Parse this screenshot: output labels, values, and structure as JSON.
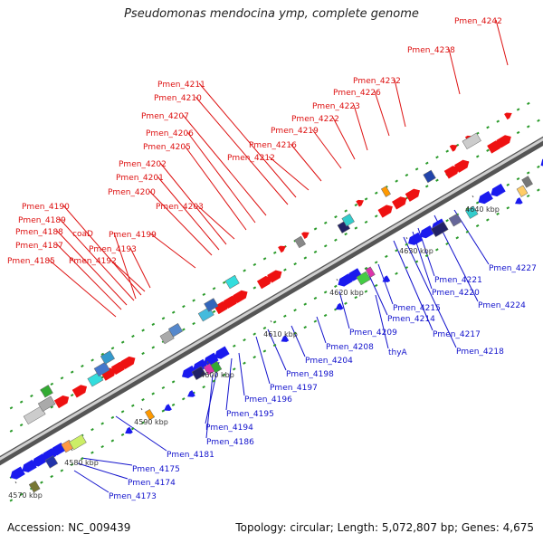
{
  "title": "Pseudomonas mendocina ymp, complete genome",
  "footer": {
    "accession": "Accession: NC_009439",
    "summary": "Topology: circular; Length: 5,072,807 bp; Genes: 4,675"
  },
  "colors": {
    "top_label": "#dd1111",
    "bottom_label": "#1111cc",
    "forward_gene": "#ee1111",
    "reverse_gene": "#1a1aee"
  },
  "axis_ticks": [
    {
      "label": "4570 kbp"
    },
    {
      "label": "4580 kbp"
    },
    {
      "label": "4590 kbp"
    },
    {
      "label": "4600 kbp"
    },
    {
      "label": "4610 kbp"
    },
    {
      "label": "4620 kbp"
    },
    {
      "label": "4630 kbp"
    },
    {
      "label": "4640 kbp"
    }
  ],
  "top_labels": [
    {
      "text": "Pmen_4185"
    },
    {
      "text": "Pmen_4187"
    },
    {
      "text": "Pmen_4188"
    },
    {
      "text": "Pmen_4189"
    },
    {
      "text": "Pmen_4190"
    },
    {
      "text": "coaD"
    },
    {
      "text": "Pmen_4192"
    },
    {
      "text": "Pmen_4193"
    },
    {
      "text": "Pmen_4199"
    },
    {
      "text": "Pmen_4200"
    },
    {
      "text": "Pmen_4201"
    },
    {
      "text": "Pmen_4202"
    },
    {
      "text": "Pmen_4203"
    },
    {
      "text": "Pmen_4205"
    },
    {
      "text": "Pmen_4206"
    },
    {
      "text": "Pmen_4207"
    },
    {
      "text": "Pmen_4210"
    },
    {
      "text": "Pmen_4211"
    },
    {
      "text": "Pmen_4212"
    },
    {
      "text": "Pmen_4216"
    },
    {
      "text": "Pmen_4219"
    },
    {
      "text": "Pmen_4222"
    },
    {
      "text": "Pmen_4223"
    },
    {
      "text": "Pmen_4226"
    },
    {
      "text": "Pmen_4232"
    },
    {
      "text": "Pmen_4238"
    },
    {
      "text": "Pmen_4242"
    }
  ],
  "bottom_labels": [
    {
      "text": "Pmen_4173"
    },
    {
      "text": "Pmen_4174"
    },
    {
      "text": "Pmen_4175"
    },
    {
      "text": "Pmen_4181"
    },
    {
      "text": "Pmen_4186"
    },
    {
      "text": "Pmen_4194"
    },
    {
      "text": "Pmen_4195"
    },
    {
      "text": "Pmen_4196"
    },
    {
      "text": "Pmen_4197"
    },
    {
      "text": "Pmen_4198"
    },
    {
      "text": "Pmen_4204"
    },
    {
      "text": "Pmen_4208"
    },
    {
      "text": "Pmen_4209"
    },
    {
      "text": "thyA"
    },
    {
      "text": "Pmen_4214"
    },
    {
      "text": "Pmen_4215"
    },
    {
      "text": "Pmen_4217"
    },
    {
      "text": "Pmen_4218"
    },
    {
      "text": "Pmen_4220"
    },
    {
      "text": "Pmen_4221"
    },
    {
      "text": "Pmen_4224"
    },
    {
      "text": "Pmen_4227"
    }
  ]
}
